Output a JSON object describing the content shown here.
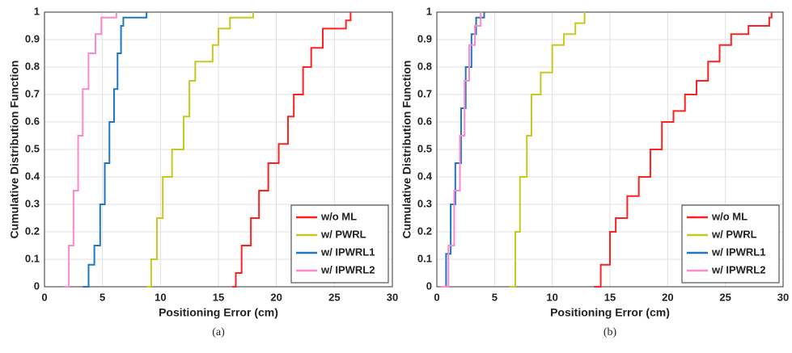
{
  "chart_data": [
    {
      "type": "step",
      "caption": "(a)",
      "xlabel": "Positioning Error (cm)",
      "ylabel": "Cumulative Distribution Function",
      "xlim": [
        0,
        30
      ],
      "ylim": [
        0,
        1
      ],
      "xticks": [
        0,
        5,
        10,
        15,
        20,
        25,
        30
      ],
      "yticks": [
        0,
        0.1,
        0.2,
        0.3,
        0.4,
        0.5,
        0.6,
        0.7,
        0.8,
        0.9,
        1
      ],
      "grid": true,
      "legend": "lower right",
      "series": [
        {
          "name": "w/o ML",
          "color": "#ff2020",
          "x": [
            16.2,
            16.5,
            17,
            17.8,
            18.5,
            19.3,
            20.2,
            21,
            21.5,
            22.3,
            23,
            24,
            26,
            26.4
          ],
          "values": [
            0,
            0.05,
            0.15,
            0.25,
            0.35,
            0.45,
            0.52,
            0.62,
            0.7,
            0.8,
            0.87,
            0.94,
            0.97,
            1
          ]
        },
        {
          "name": "w/ PWRL",
          "color": "#c8c820",
          "x": [
            8.8,
            9.2,
            9.7,
            10.2,
            11,
            12,
            12.5,
            13,
            14.5,
            15,
            16,
            18
          ],
          "values": [
            0,
            0.1,
            0.25,
            0.4,
            0.5,
            0.62,
            0.75,
            0.82,
            0.88,
            0.94,
            0.98,
            1
          ]
        },
        {
          "name": "w/ IPWRL1",
          "color": "#1f77c4",
          "x": [
            3.3,
            3.8,
            4.3,
            4.8,
            5.2,
            5.6,
            6,
            6.3,
            6.6,
            6.8,
            8.8
          ],
          "values": [
            0,
            0.08,
            0.15,
            0.3,
            0.45,
            0.6,
            0.72,
            0.85,
            0.95,
            0.98,
            1
          ]
        },
        {
          "name": "w/ IPWRL2",
          "color": "#ff88cc",
          "x": [
            1.7,
            2.1,
            2.5,
            2.9,
            3.3,
            3.8,
            4.4,
            4.9,
            6.2
          ],
          "values": [
            0,
            0.15,
            0.35,
            0.55,
            0.72,
            0.85,
            0.92,
            0.98,
            1
          ]
        }
      ]
    },
    {
      "type": "step",
      "caption": "(b)",
      "xlabel": "Positioning Error (cm)",
      "ylabel": "Cumulative Distribution Function",
      "xlim": [
        0,
        30
      ],
      "ylim": [
        0,
        1
      ],
      "xticks": [
        0,
        5,
        10,
        15,
        20,
        25,
        30
      ],
      "yticks": [
        0,
        0.1,
        0.2,
        0.3,
        0.4,
        0.5,
        0.6,
        0.7,
        0.8,
        0.9,
        1
      ],
      "grid": true,
      "legend": "lower right",
      "series": [
        {
          "name": "w/o ML",
          "color": "#ff2020",
          "x": [
            13.6,
            14.2,
            15,
            15.5,
            16.5,
            17.5,
            18.5,
            19.5,
            20.5,
            21.5,
            22.5,
            23.5,
            24.5,
            25.5,
            27,
            28.8,
            29
          ],
          "values": [
            0,
            0.08,
            0.2,
            0.25,
            0.33,
            0.4,
            0.5,
            0.6,
            0.64,
            0.7,
            0.75,
            0.82,
            0.88,
            0.92,
            0.95,
            0.98,
            1
          ]
        },
        {
          "name": "w/ PWRL",
          "color": "#c8c820",
          "x": [
            6.3,
            6.8,
            7.2,
            7.8,
            8.2,
            9,
            10,
            11,
            12,
            12.8
          ],
          "values": [
            0,
            0.2,
            0.4,
            0.55,
            0.7,
            0.78,
            0.88,
            0.92,
            0.96,
            1
          ]
        },
        {
          "name": "w/ IPWRL1",
          "color": "#1f77c4",
          "x": [
            0.3,
            0.8,
            1.2,
            1.6,
            2.1,
            2.5,
            3,
            3.4,
            4.1
          ],
          "values": [
            0,
            0.12,
            0.3,
            0.45,
            0.65,
            0.8,
            0.92,
            0.98,
            1
          ]
        },
        {
          "name": "w/ IPWRL2",
          "color": "#ff88cc",
          "x": [
            0.3,
            1,
            1.5,
            2,
            2.4,
            2.8,
            3.3,
            3.8
          ],
          "values": [
            0,
            0.15,
            0.35,
            0.55,
            0.75,
            0.88,
            0.95,
            1
          ]
        }
      ]
    }
  ]
}
